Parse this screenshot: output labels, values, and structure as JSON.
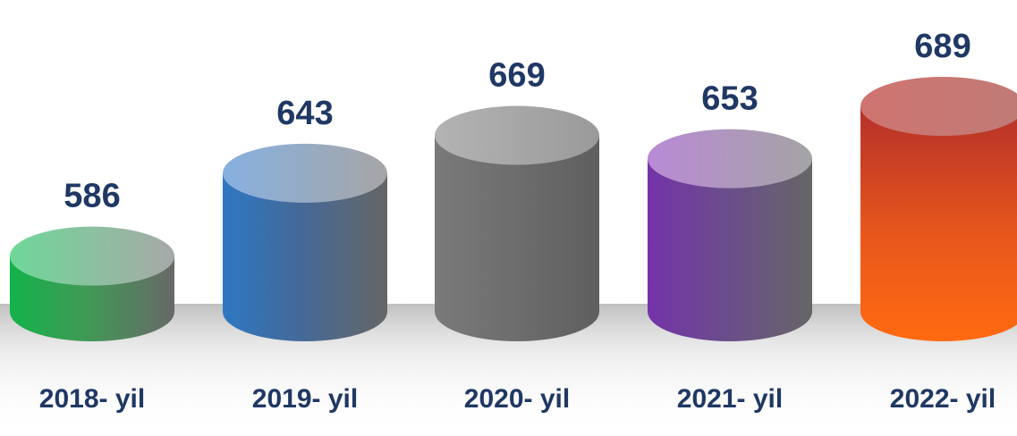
{
  "chart_data": {
    "type": "bar",
    "categories": [
      "2018- yil",
      "2019- yil",
      "2020- yil",
      "2021- yil",
      "2022- yil"
    ],
    "values": [
      586,
      643,
      669,
      653,
      689
    ],
    "colors": [
      "#1ab14a",
      "#2e74b5",
      "#8a8a8a",
      "#7030a0",
      "#ff6a10"
    ],
    "value_labels": [
      "586",
      "643",
      "669",
      "653",
      "689"
    ],
    "grid": false,
    "legend": "none"
  }
}
